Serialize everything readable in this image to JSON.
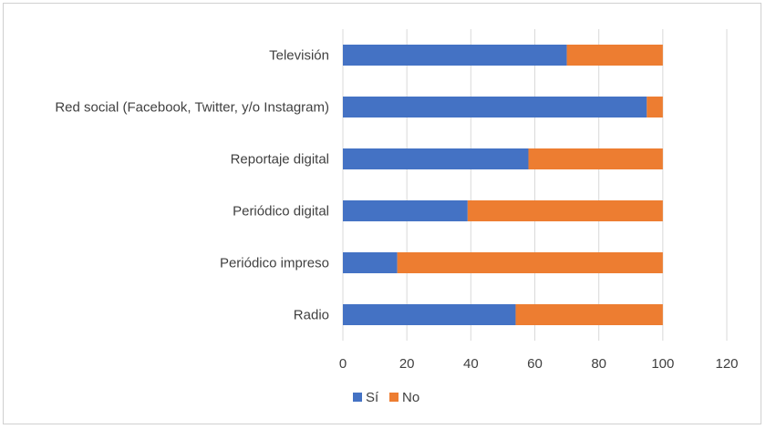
{
  "chart_data": {
    "type": "bar",
    "orientation": "horizontal",
    "stacked": true,
    "title": "",
    "xlabel": "",
    "ylabel": "",
    "categories": [
      "Televisión",
      "Red social (Facebook, Twitter, y/o Instagram)",
      "Reportaje digital",
      "Periódico digital",
      "Periódico impreso",
      "Radio"
    ],
    "series": [
      {
        "name": "Sí",
        "color": "#4472c4",
        "values": [
          70,
          95,
          58,
          39,
          17,
          54
        ]
      },
      {
        "name": "No",
        "color": "#ed7d31",
        "values": [
          30,
          5,
          42,
          61,
          83,
          46
        ]
      }
    ],
    "xlim": [
      0,
      120
    ],
    "x_ticks": [
      "0",
      "20",
      "40",
      "60",
      "80",
      "100",
      "120"
    ],
    "gridlines": true,
    "legend_position": "bottom-left"
  }
}
